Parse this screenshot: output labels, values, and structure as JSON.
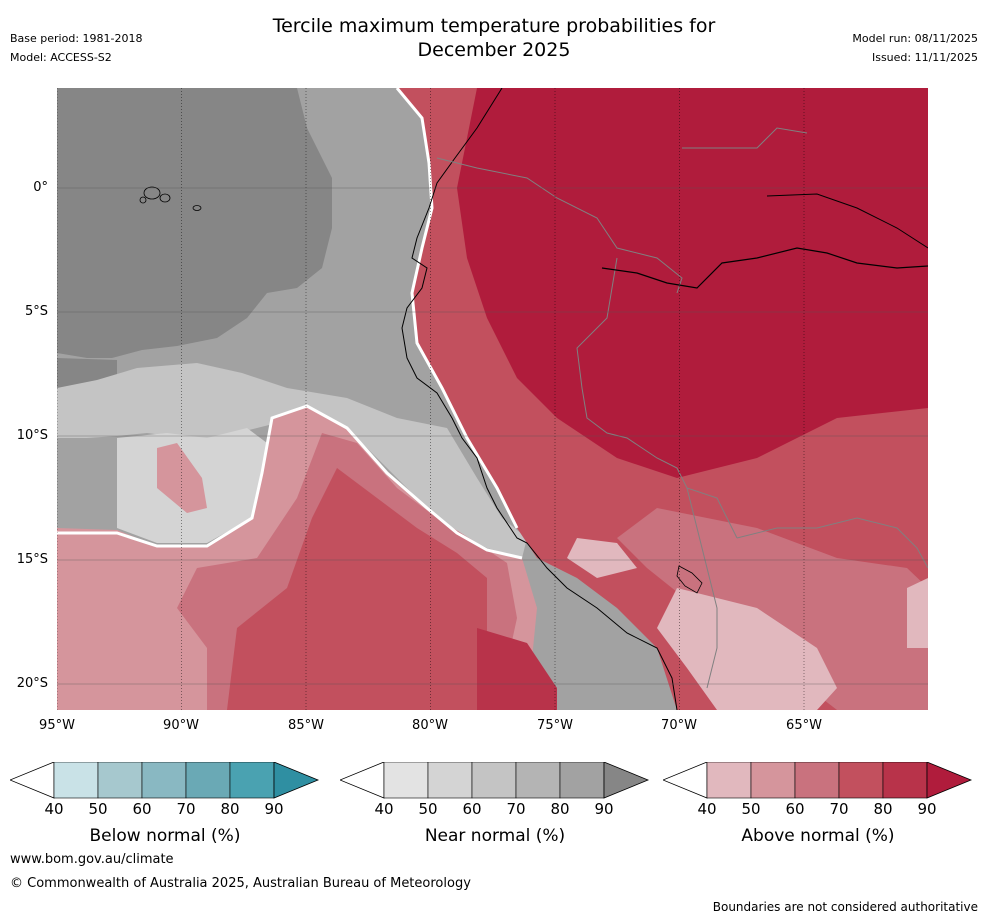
{
  "header": {
    "title_line1": "Tercile maximum temperature probabilities for",
    "title_line2": "December 2025",
    "base_period": "Base period: 1981-2018",
    "model": "Model: ACCESS-S2",
    "model_run": "Model run: 08/11/2025",
    "issued": "Issued: 11/11/2025"
  },
  "map": {
    "lat_labels": [
      "0°",
      "5°S",
      "10°S",
      "15°S",
      "20°S"
    ],
    "lon_labels": [
      "95°W",
      "90°W",
      "85°W",
      "80°W",
      "75°W",
      "70°W",
      "65°W"
    ],
    "regions": {
      "ocean_near_normal": "Near normal probabilities over Pacific Ocean",
      "land_above_normal": "Above normal probabilities over South America"
    }
  },
  "legends": [
    {
      "title": "Below normal (%)",
      "ticks": [
        "40",
        "50",
        "60",
        "70",
        "80",
        "90"
      ],
      "colors": [
        "#ffffff",
        "#c9e2e7",
        "#a6c8ce",
        "#89b8c2",
        "#6aa9b5",
        "#4aa2b1",
        "#2f8fa2"
      ]
    },
    {
      "title": "Near normal (%)",
      "ticks": [
        "40",
        "50",
        "60",
        "70",
        "80",
        "90"
      ],
      "colors": [
        "#ffffff",
        "#e3e3e3",
        "#d4d4d4",
        "#c4c4c4",
        "#b4b4b4",
        "#a2a2a2",
        "#868686"
      ]
    },
    {
      "title": "Above normal (%)",
      "ticks": [
        "40",
        "50",
        "60",
        "70",
        "80",
        "90"
      ],
      "colors": [
        "#ffffff",
        "#e1b8be",
        "#d5959c",
        "#c9727e",
        "#c2505e",
        "#b8334a",
        "#b01c3c"
      ]
    }
  ],
  "footer": {
    "website": "www.bom.gov.au/climate",
    "copyright": "© Commonwealth of Australia 2025, Australian Bureau of Meteorology",
    "disclaimer": "Boundaries are not considered authoritative"
  }
}
